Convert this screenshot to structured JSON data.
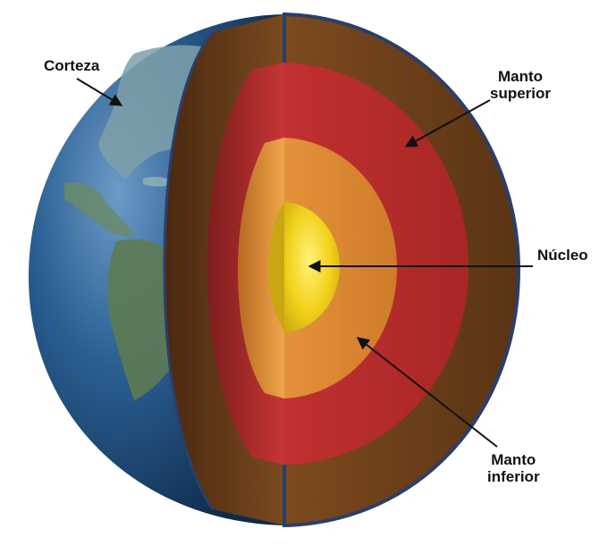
{
  "labels": {
    "corteza": "Corteza",
    "manto_superior": [
      "Manto",
      "superior"
    ],
    "nucleo": "Núcleo",
    "manto_inferior": [
      "Manto",
      "inferior"
    ]
  },
  "colors": {
    "ocean": "#2a5f93",
    "ocean_dark": "#0f2a4a",
    "land": "#7fa0a8",
    "crust_rim": "#6b3d16",
    "upper_mantle": "#b02a2a",
    "lower_mantle": "#d9872e",
    "core": "#f2d21b",
    "arrow": "#111111"
  },
  "icons": {
    "arrow": "arrow-pointer"
  }
}
